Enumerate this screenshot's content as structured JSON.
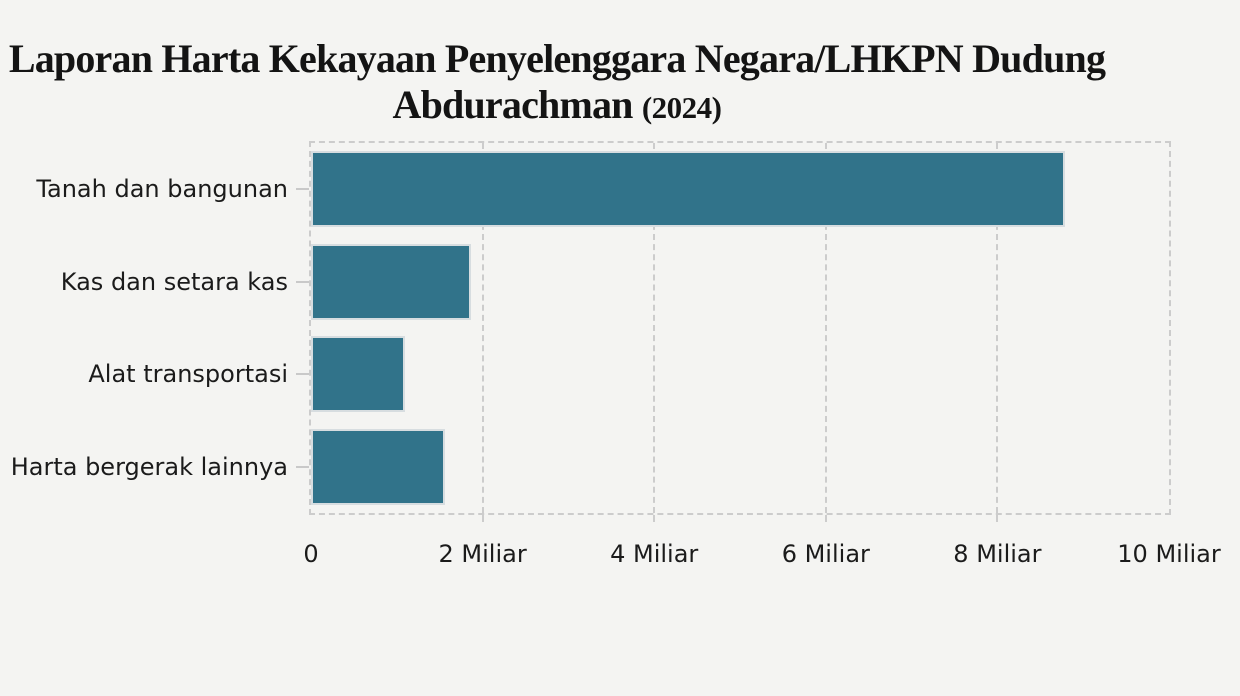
{
  "page": {
    "background": "#f4f4f2",
    "text_color": "#1b1b1b"
  },
  "chart_data": {
    "type": "bar",
    "orientation": "horizontal",
    "title": "Laporan Harta Kekayaan Penyelenggara Negara/LHKPN Dudung Abdurachman (2024)",
    "title_lines": [
      "Laporan Harta Kekayaan Penyelenggara Negara/LHKPN Dudung",
      "Abdurachman"
    ],
    "title_year": "(2024)",
    "categories": [
      "Tanah dan bangunan",
      "Kas dan setara kas",
      "Alat transportasi",
      "Harta bergerak lainnya"
    ],
    "values": [
      8.79,
      1.86,
      1.09,
      1.56
    ],
    "unit": "Miliar",
    "xlim": [
      0,
      10
    ],
    "x_ticks": [
      {
        "value": 0,
        "label": "0"
      },
      {
        "value": 2,
        "label": "2 Miliar"
      },
      {
        "value": 4,
        "label": "4 Miliar"
      },
      {
        "value": 6,
        "label": "6 Miliar"
      },
      {
        "value": 8,
        "label": "8 Miliar"
      },
      {
        "value": 10,
        "label": "10 Miliar"
      }
    ],
    "xlabel": "",
    "ylabel": "",
    "legend": "none",
    "grid": "dashed",
    "bar_color": "#31738a",
    "bar_border_color": "#d7dde0",
    "grid_color": "#cccccc"
  }
}
